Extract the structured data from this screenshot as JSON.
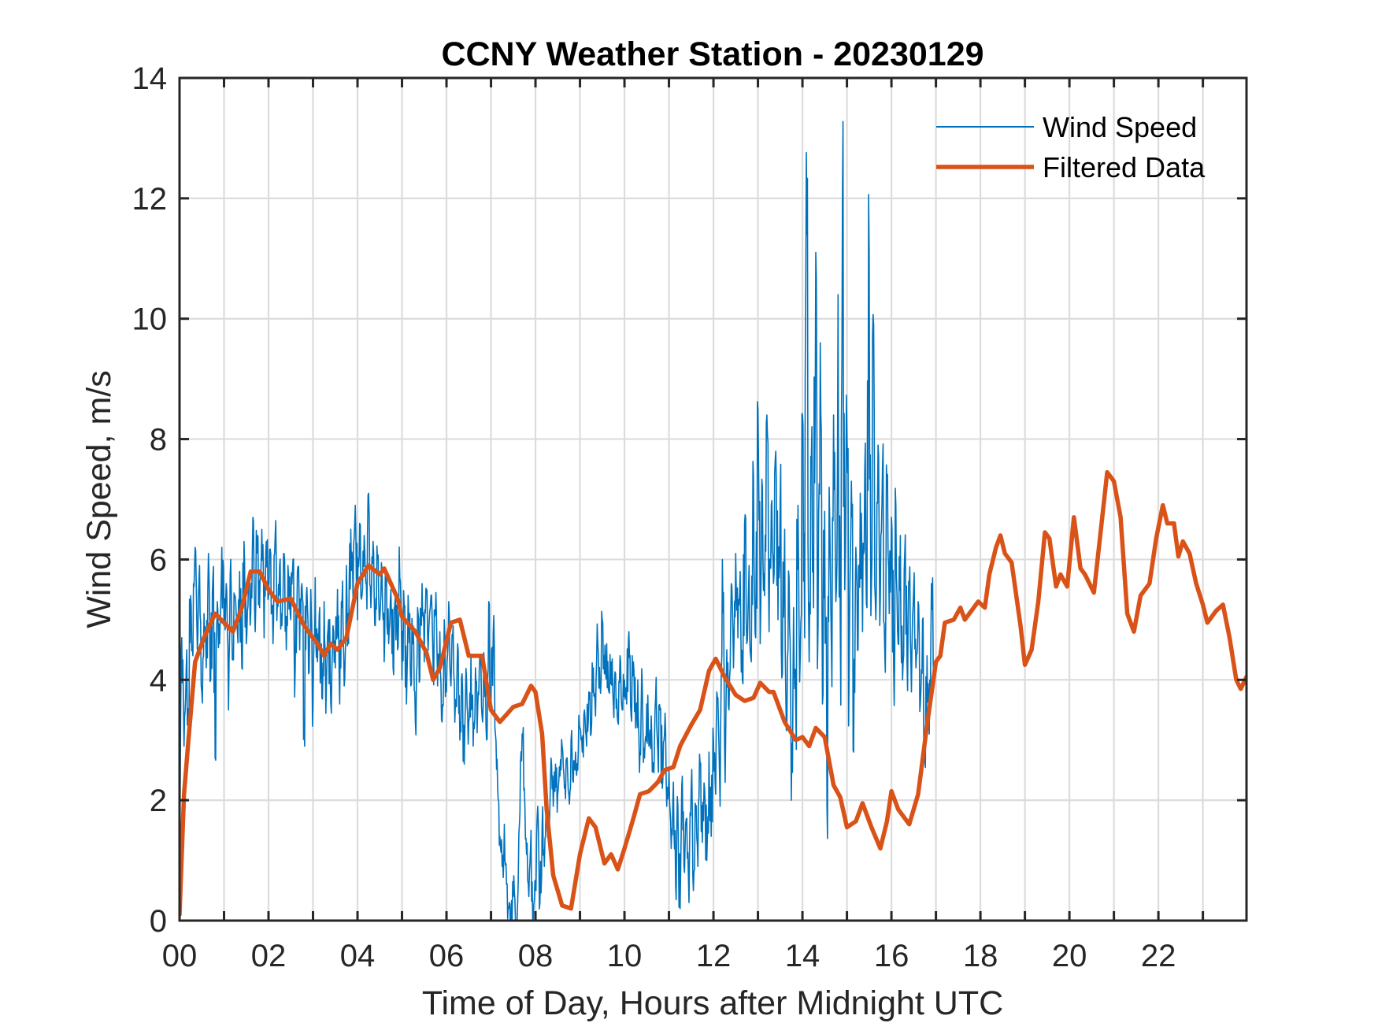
{
  "chart_data": {
    "type": "line",
    "title": "CCNY Weather Station - 20230129",
    "xlabel": "Time of Day, Hours after Midnight UTC",
    "ylabel": "Wind Speed, m/s",
    "xlim": [
      0,
      23.98
    ],
    "ylim": [
      0,
      14
    ],
    "grid": true,
    "legend_position": "top-right",
    "x_ticks": [
      0,
      2,
      4,
      6,
      8,
      10,
      12,
      14,
      16,
      18,
      20,
      22
    ],
    "x_tick_labels": [
      "00",
      "02",
      "04",
      "06",
      "08",
      "10",
      "12",
      "14",
      "16",
      "18",
      "20",
      "22"
    ],
    "x_minor_grid_step": 1,
    "y_ticks": [
      0,
      2,
      4,
      6,
      8,
      10,
      12,
      14
    ],
    "y_tick_labels": [
      "0",
      "2",
      "4",
      "6",
      "8",
      "10",
      "12",
      "14"
    ],
    "series": [
      {
        "name": "Wind Speed",
        "color": "#0072BD",
        "style": "thin",
        "x_start": 0,
        "x_step": 0.05,
        "values": [
          0.3,
          4.7,
          2.9,
          4.2,
          3.1,
          5.4,
          4.4,
          6.2,
          4.5,
          5.9,
          3.8,
          5.1,
          4.2,
          6.1,
          4.0,
          5.7,
          2.7,
          5.3,
          4.6,
          6.2,
          4.9,
          5.6,
          3.5,
          6.0,
          4.4,
          5.4,
          4.8,
          5.8,
          4.2,
          6.3,
          4.6,
          5.7,
          5.1,
          6.7,
          4.8,
          6.4,
          5.2,
          6.5,
          4.7,
          6.3,
          5.4,
          6.1,
          4.6,
          6.4,
          5.3,
          5.9,
          4.9,
          6.1,
          4.5,
          5.7,
          5.0,
          6.0,
          4.2,
          5.8,
          4.5,
          5.6,
          3.3,
          5.4,
          4.1,
          5.5,
          3.6,
          5.7,
          4.3,
          5.2,
          3.7,
          5.3,
          3.9,
          5.0,
          3.6,
          4.9,
          4.2,
          5.5,
          3.6,
          5.2,
          3.9,
          5.9,
          4.6,
          6.5,
          5.3,
          6.9,
          5.0,
          6.6,
          5.4,
          6.4,
          5.6,
          7.1,
          5.2,
          6.3,
          4.9,
          6.0,
          5.0,
          5.8,
          4.3,
          5.7,
          4.6,
          5.5,
          4.2,
          5.4,
          4.5,
          5.7,
          4.0,
          5.2,
          3.6,
          5.1,
          3.9,
          4.9,
          3.3,
          5.2,
          4.0,
          5.6,
          4.3,
          5.5,
          4.8,
          5.4,
          4.2,
          5.1,
          3.9,
          4.8,
          3.3,
          5.0,
          3.8,
          5.3,
          3.9,
          4.9,
          3.6,
          4.6,
          3.0,
          4.1,
          2.6,
          4.0,
          3.3,
          4.4,
          2.9,
          4.2,
          3.5,
          4.4,
          3.4,
          4.3,
          3.0,
          5.3,
          3.5,
          4.8,
          3.1,
          2.2,
          1.4,
          0.9,
          1.6,
          0.6,
          0.2,
          0.0,
          0.4,
          0.0,
          0.3,
          1.8,
          3.1,
          2.2,
          1.1,
          0.4,
          1.5,
          0.0,
          0.6,
          1.9,
          0.3,
          1.6,
          0.9,
          2.0,
          1.3,
          2.7,
          1.9,
          2.6,
          2.1,
          2.4,
          2.9,
          2.2,
          2.7,
          2.1,
          3.0,
          2.3,
          2.8,
          2.5,
          3.2,
          2.8,
          3.5,
          2.9,
          3.8,
          3.1,
          4.2,
          3.4,
          4.6,
          3.9,
          5.0,
          4.1,
          4.6,
          3.8,
          4.3,
          3.6,
          4.1,
          3.3,
          4.4,
          3.5,
          4.0,
          3.6,
          4.8,
          3.4,
          4.3,
          3.2,
          4.0,
          2.8,
          3.9,
          2.7,
          3.6,
          2.9,
          3.4,
          2.5,
          3.7,
          2.8,
          3.5,
          2.2,
          3.1,
          1.9,
          2.5,
          1.2,
          2.3,
          0.6,
          1.9,
          0.2,
          2.4,
          0.8,
          1.7,
          0.3,
          2.2,
          0.5,
          1.9,
          0.9,
          2.6,
          1.3,
          2.2,
          1.0,
          2.8,
          1.4,
          3.0,
          2.1,
          3.7,
          1.9,
          6.0,
          2.9,
          4.5,
          3.5,
          5.6,
          4.2,
          6.1,
          4.7,
          5.8,
          4.0,
          6.6,
          4.6,
          5.9,
          4.3,
          7.4,
          4.7,
          8.5,
          4.6,
          7.2,
          5.4,
          8.4,
          4.8,
          6.9,
          5.6,
          7.8,
          5.0,
          7.0,
          4.1,
          6.5,
          3.2,
          5.7,
          2.0,
          5.2,
          3.5,
          6.9,
          4.4,
          8.4,
          4.7,
          11.4,
          4.3,
          7.7,
          5.2,
          11.1,
          4.9,
          9.6,
          3.6,
          6.8,
          1.9,
          7.2,
          4.6,
          8.4,
          5.3,
          10.4,
          5.0,
          12.1,
          5.5,
          8.1,
          4.2,
          7.3,
          2.8,
          6.2,
          4.5,
          7.1,
          4.8,
          7.5,
          5.2,
          11.1,
          5.6,
          9.9,
          5.0,
          7.9,
          5.4,
          7.6,
          4.5,
          7.2,
          5.1,
          6.7,
          4.2,
          6.9,
          4.6,
          6.4,
          4.0,
          6.1,
          4.3,
          5.6,
          3.8,
          5.5,
          4.2,
          5.3,
          3.6,
          5.0,
          2.7,
          4.4,
          3.1,
          5.6,
          4.0
        ]
      },
      {
        "name": "Filtered Data",
        "color": "#D95319",
        "style": "thick",
        "points": [
          [
            0.0,
            0.1
          ],
          [
            0.1,
            2.1
          ],
          [
            0.2,
            3.0
          ],
          [
            0.35,
            4.3
          ],
          [
            0.55,
            4.7
          ],
          [
            0.8,
            5.1
          ],
          [
            1.0,
            4.95
          ],
          [
            1.2,
            4.8
          ],
          [
            1.4,
            5.2
          ],
          [
            1.6,
            5.8
          ],
          [
            1.8,
            5.8
          ],
          [
            2.0,
            5.5
          ],
          [
            2.2,
            5.3
          ],
          [
            2.5,
            5.35
          ],
          [
            2.8,
            4.9
          ],
          [
            3.1,
            4.6
          ],
          [
            3.25,
            4.4
          ],
          [
            3.4,
            4.6
          ],
          [
            3.55,
            4.5
          ],
          [
            3.75,
            4.7
          ],
          [
            4.0,
            5.6
          ],
          [
            4.25,
            5.9
          ],
          [
            4.5,
            5.75
          ],
          [
            4.6,
            5.85
          ],
          [
            4.9,
            5.35
          ],
          [
            5.0,
            5.05
          ],
          [
            5.3,
            4.8
          ],
          [
            5.55,
            4.45
          ],
          [
            5.7,
            4.0
          ],
          [
            5.85,
            4.2
          ],
          [
            6.1,
            4.95
          ],
          [
            6.3,
            5.0
          ],
          [
            6.5,
            4.4
          ],
          [
            6.8,
            4.4
          ],
          [
            7.0,
            3.5
          ],
          [
            7.2,
            3.3
          ],
          [
            7.5,
            3.55
          ],
          [
            7.7,
            3.6
          ],
          [
            7.9,
            3.9
          ],
          [
            8.0,
            3.8
          ],
          [
            8.15,
            3.1
          ],
          [
            8.25,
            1.85
          ],
          [
            8.4,
            0.75
          ],
          [
            8.6,
            0.25
          ],
          [
            8.8,
            0.2
          ],
          [
            9.0,
            1.1
          ],
          [
            9.2,
            1.7
          ],
          [
            9.35,
            1.55
          ],
          [
            9.55,
            0.95
          ],
          [
            9.7,
            1.1
          ],
          [
            9.85,
            0.85
          ],
          [
            10.0,
            1.2
          ],
          [
            10.2,
            1.7
          ],
          [
            10.35,
            2.1
          ],
          [
            10.55,
            2.15
          ],
          [
            10.75,
            2.3
          ],
          [
            10.9,
            2.5
          ],
          [
            11.1,
            2.55
          ],
          [
            11.25,
            2.9
          ],
          [
            11.5,
            3.25
          ],
          [
            11.7,
            3.5
          ],
          [
            11.9,
            4.15
          ],
          [
            12.05,
            4.35
          ],
          [
            12.25,
            4.05
          ],
          [
            12.5,
            3.75
          ],
          [
            12.7,
            3.65
          ],
          [
            12.9,
            3.7
          ],
          [
            13.05,
            3.95
          ],
          [
            13.25,
            3.8
          ],
          [
            13.35,
            3.8
          ],
          [
            13.6,
            3.3
          ],
          [
            13.85,
            3.0
          ],
          [
            14.0,
            3.05
          ],
          [
            14.15,
            2.9
          ],
          [
            14.3,
            3.2
          ],
          [
            14.5,
            3.05
          ],
          [
            14.7,
            2.25
          ],
          [
            14.85,
            2.05
          ],
          [
            15.0,
            1.55
          ],
          [
            15.2,
            1.65
          ],
          [
            15.35,
            1.95
          ],
          [
            15.55,
            1.55
          ],
          [
            15.75,
            1.2
          ],
          [
            15.9,
            1.65
          ],
          [
            16.0,
            2.15
          ],
          [
            16.15,
            1.85
          ],
          [
            16.4,
            1.6
          ],
          [
            16.6,
            2.1
          ],
          [
            16.8,
            3.25
          ],
          [
            17.0,
            4.3
          ],
          [
            17.1,
            4.4
          ],
          [
            17.2,
            4.95
          ],
          [
            17.4,
            5.0
          ],
          [
            17.55,
            5.2
          ],
          [
            17.65,
            5.0
          ],
          [
            17.85,
            5.2
          ],
          [
            17.95,
            5.3
          ],
          [
            18.1,
            5.2
          ],
          [
            18.2,
            5.75
          ],
          [
            18.35,
            6.2
          ],
          [
            18.45,
            6.4
          ],
          [
            18.55,
            6.1
          ],
          [
            18.7,
            5.95
          ],
          [
            18.9,
            4.9
          ],
          [
            19.0,
            4.25
          ],
          [
            19.15,
            4.5
          ],
          [
            19.3,
            5.3
          ],
          [
            19.45,
            6.45
          ],
          [
            19.55,
            6.35
          ],
          [
            19.7,
            5.55
          ],
          [
            19.8,
            5.75
          ],
          [
            19.95,
            5.55
          ],
          [
            20.1,
            6.7
          ],
          [
            20.25,
            5.85
          ],
          [
            20.35,
            5.75
          ],
          [
            20.55,
            5.45
          ],
          [
            20.7,
            6.45
          ],
          [
            20.85,
            7.45
          ],
          [
            21.0,
            7.3
          ],
          [
            21.15,
            6.7
          ],
          [
            21.3,
            5.1
          ],
          [
            21.45,
            4.8
          ],
          [
            21.6,
            5.4
          ],
          [
            21.8,
            5.6
          ],
          [
            21.95,
            6.35
          ],
          [
            22.1,
            6.9
          ],
          [
            22.2,
            6.6
          ],
          [
            22.35,
            6.6
          ],
          [
            22.45,
            6.05
          ],
          [
            22.55,
            6.3
          ],
          [
            22.7,
            6.1
          ],
          [
            22.85,
            5.6
          ],
          [
            23.0,
            5.25
          ],
          [
            23.1,
            4.95
          ],
          [
            23.3,
            5.15
          ],
          [
            23.45,
            5.25
          ],
          [
            23.6,
            4.7
          ],
          [
            23.75,
            4.0
          ],
          [
            23.85,
            3.85
          ],
          [
            23.98,
            4.05
          ]
        ]
      }
    ]
  }
}
